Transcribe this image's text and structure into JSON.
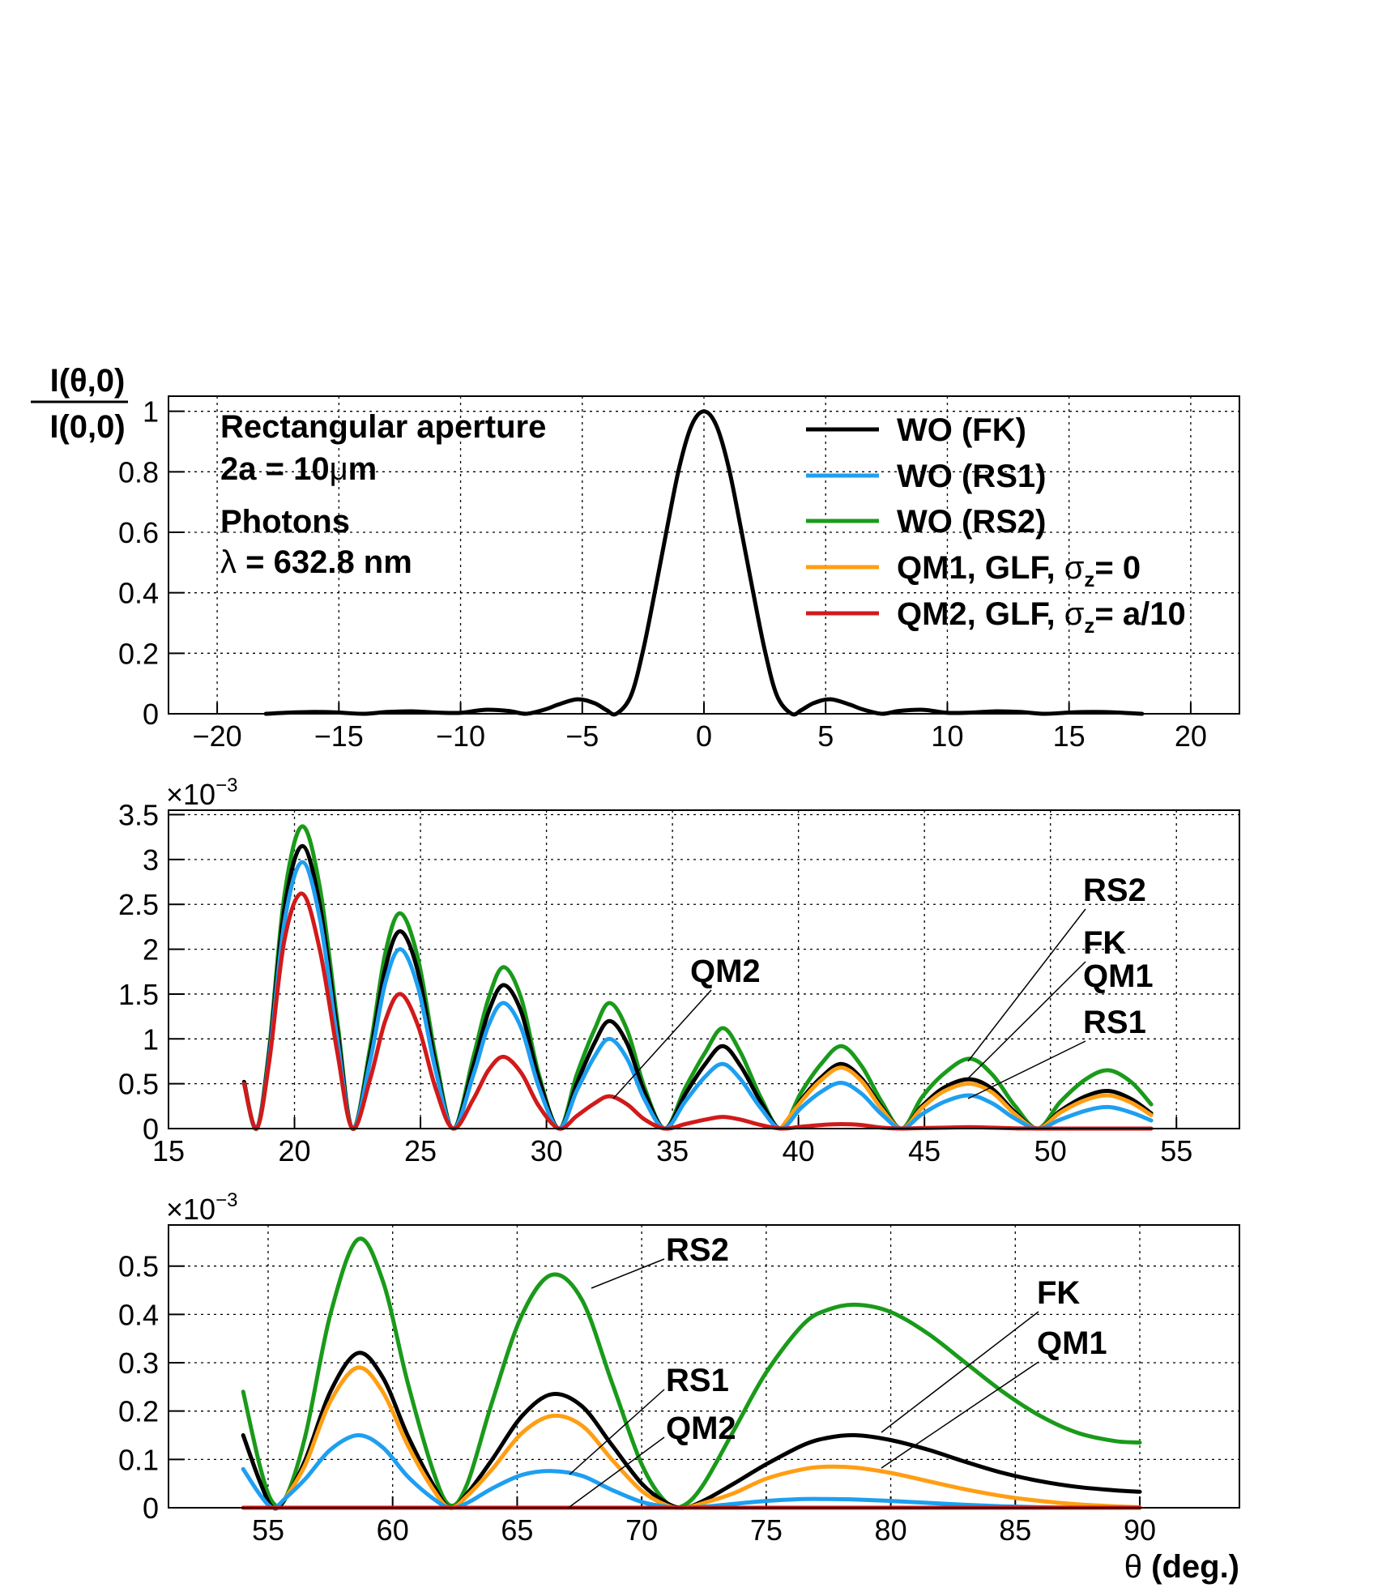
{
  "chart_data": [
    {
      "type": "line",
      "panel": "top",
      "ylabel_numerator": "I(θ,0)",
      "ylabel_denominator": "I(0,0)",
      "xlim": [
        -22,
        22
      ],
      "ylim": [
        0,
        1.05
      ],
      "xticks": [
        -20,
        -15,
        -10,
        -5,
        0,
        5,
        10,
        15,
        20
      ],
      "xtick_labels": [
        "−20",
        "−15",
        "−10",
        "−5",
        "0",
        "5",
        "10",
        "15",
        "20"
      ],
      "yticks": [
        0,
        0.2,
        0.4,
        0.6,
        0.8,
        1
      ],
      "ytick_labels": [
        "0",
        "0.2",
        "0.4",
        "0.6",
        "0.8",
        "1"
      ],
      "info_text": {
        "title": "Rectangular aperture",
        "size_prefix": "2a = 10",
        "size_unit_symbol": "μ",
        "size_unit": "m",
        "particle": "Photons",
        "wavelength_symbol": "λ",
        "wavelength": " = 632.8 nm"
      },
      "legend": {
        "position": "top-right",
        "entries": [
          {
            "label": "WO (FK)",
            "color": "#000000"
          },
          {
            "label": "WO (RS1)",
            "color": "#1e9ff0"
          },
          {
            "label": "WO (RS2)",
            "color": "#1a9a1a"
          },
          {
            "label_prefix": "QM1, GLF, ",
            "symbol": "σ",
            "subscript": "z",
            "label_suffix": "= 0",
            "color": "#ff9e14"
          },
          {
            "label_prefix": "QM2, GLF, ",
            "symbol": "σ",
            "subscript": "z",
            "label_suffix": "= a/10",
            "color": "#d11a1a"
          }
        ]
      },
      "series": [
        {
          "name": "WO (FK)",
          "color": "#000000",
          "x": [
            -18,
            -17,
            -16,
            -15,
            -14,
            -13,
            -12,
            -11,
            -10,
            -9,
            -8,
            -7.3,
            -6.5,
            -6,
            -5.2,
            -4.5,
            -4,
            -3.6,
            -3,
            -2.5,
            -2,
            -1.5,
            -1,
            -0.5,
            0,
            0.5,
            1,
            1.5,
            2,
            2.5,
            3,
            3.6,
            4,
            4.5,
            5.2,
            6,
            6.5,
            7.3,
            8,
            9,
            10,
            11,
            12,
            13,
            14,
            15,
            16,
            17,
            18
          ],
          "y": [
            0,
            0.004,
            0.006,
            0.004,
            0,
            0.006,
            0.008,
            0.004,
            0.003,
            0.013,
            0.009,
            0,
            0.015,
            0.03,
            0.048,
            0.035,
            0.012,
            0,
            0.06,
            0.21,
            0.41,
            0.62,
            0.82,
            0.955,
            1,
            0.955,
            0.82,
            0.62,
            0.41,
            0.21,
            0.06,
            0,
            0.012,
            0.035,
            0.048,
            0.03,
            0.015,
            0,
            0.009,
            0.013,
            0.003,
            0.004,
            0.008,
            0.006,
            0,
            0.004,
            0.006,
            0.004,
            0
          ]
        }
      ]
    },
    {
      "type": "line",
      "panel": "middle",
      "multiplier_base": "×10",
      "multiplier_exp": "−3",
      "xlim": [
        15,
        57.5
      ],
      "ylim": [
        0,
        3.55
      ],
      "xticks": [
        15,
        20,
        25,
        30,
        35,
        40,
        45,
        50,
        55
      ],
      "xtick_labels": [
        "15",
        "20",
        "25",
        "30",
        "35",
        "40",
        "45",
        "50",
        "55"
      ],
      "yticks": [
        0,
        0.5,
        1,
        1.5,
        2,
        2.5,
        3,
        3.5
      ],
      "ytick_labels": [
        "0",
        "0.5",
        "1",
        "1.5",
        "2",
        "2.5",
        "3",
        "3.5"
      ],
      "annotations": [
        "QM2",
        "RS2",
        "FK",
        "QM1",
        "RS1"
      ],
      "series": [
        {
          "name": "WO (RS2)",
          "color": "#1a9a1a",
          "x": [
            18,
            18.5,
            19,
            19.6,
            20.3,
            21,
            21.7,
            22.3,
            23,
            23.6,
            24.2,
            24.9,
            25.6,
            26.3,
            27.1,
            27.7,
            28.3,
            29,
            29.7,
            30.5,
            31.2,
            31.9,
            32.5,
            33.2,
            33.9,
            34.7,
            35.5,
            36.3,
            37,
            37.7,
            38.5,
            39.3,
            40.1,
            40.9,
            41.7,
            42.5,
            43.3,
            44.1,
            44.9,
            45.8,
            46.8,
            47.7,
            48.6,
            49.5,
            50.4,
            51.4,
            52.3,
            53.2,
            54
          ],
          "y": [
            0.52,
            0,
            0.9,
            2.6,
            3.37,
            2.7,
            1.2,
            0,
            0.9,
            1.95,
            2.4,
            1.9,
            0.8,
            0,
            0.8,
            1.45,
            1.8,
            1.45,
            0.6,
            0,
            0.6,
            1.1,
            1.4,
            1.1,
            0.45,
            0,
            0.45,
            0.85,
            1.12,
            0.85,
            0.35,
            0,
            0.4,
            0.72,
            0.92,
            0.7,
            0.3,
            0,
            0.35,
            0.62,
            0.78,
            0.6,
            0.25,
            0,
            0.3,
            0.55,
            0.65,
            0.52,
            0.27
          ]
        },
        {
          "name": "WO (FK)",
          "color": "#000000",
          "x": [
            18,
            18.5,
            19,
            19.6,
            20.3,
            21,
            21.7,
            22.3,
            23,
            23.6,
            24.2,
            24.9,
            25.6,
            26.3,
            27.1,
            27.7,
            28.3,
            29,
            29.7,
            30.5,
            31.2,
            31.9,
            32.5,
            33.2,
            33.9,
            34.7,
            35.5,
            36.3,
            37,
            37.7,
            38.5,
            39.3,
            40.1,
            40.9,
            41.7,
            42.5,
            43.3,
            44.1,
            44.9,
            45.8,
            46.8,
            47.7,
            48.6,
            49.5,
            50.4,
            51.4,
            52.3,
            53.2,
            54
          ],
          "y": [
            0.52,
            0,
            0.85,
            2.45,
            3.15,
            2.5,
            1.1,
            0,
            0.82,
            1.78,
            2.2,
            1.75,
            0.72,
            0,
            0.7,
            1.3,
            1.6,
            1.3,
            0.55,
            0,
            0.5,
            0.95,
            1.2,
            0.95,
            0.4,
            0,
            0.38,
            0.72,
            0.92,
            0.7,
            0.3,
            0,
            0.32,
            0.57,
            0.72,
            0.56,
            0.24,
            0,
            0.25,
            0.46,
            0.55,
            0.44,
            0.18,
            0,
            0.2,
            0.36,
            0.42,
            0.33,
            0.17
          ]
        },
        {
          "name": "QM1, GLF, σz = 0",
          "color": "#ff9e14",
          "x": [
            39.3,
            40.1,
            40.9,
            41.7,
            42.5,
            43.3,
            44.1,
            44.9,
            45.8,
            46.8,
            47.7,
            48.6,
            49.5,
            50.4,
            51.4,
            52.3,
            53.2,
            54
          ],
          "y": [
            0,
            0.3,
            0.54,
            0.68,
            0.53,
            0.22,
            0,
            0.23,
            0.42,
            0.5,
            0.4,
            0.16,
            0,
            0.18,
            0.32,
            0.37,
            0.29,
            0.15
          ]
        },
        {
          "name": "WO (RS1)",
          "color": "#1e9ff0",
          "x": [
            18,
            18.5,
            19,
            19.6,
            20.3,
            21,
            21.7,
            22.3,
            23,
            23.6,
            24.2,
            24.9,
            25.6,
            26.3,
            27.1,
            27.7,
            28.3,
            29,
            29.7,
            30.5,
            31.2,
            31.9,
            32.5,
            33.2,
            33.9,
            34.7,
            35.5,
            36.3,
            37,
            37.7,
            38.5,
            39.3,
            40.1,
            40.9,
            41.7,
            42.5,
            43.3,
            44.1,
            44.9,
            45.8,
            46.8,
            47.7,
            48.6,
            49.5,
            50.4,
            51.4,
            52.3,
            53.2,
            54
          ],
          "y": [
            0.5,
            0,
            0.8,
            2.3,
            2.97,
            2.35,
            1.0,
            0,
            0.75,
            1.62,
            2.0,
            1.58,
            0.65,
            0,
            0.6,
            1.15,
            1.4,
            1.12,
            0.46,
            0,
            0.42,
            0.8,
            1.0,
            0.78,
            0.32,
            0,
            0.3,
            0.58,
            0.72,
            0.55,
            0.23,
            0,
            0.23,
            0.41,
            0.51,
            0.39,
            0.16,
            0,
            0.16,
            0.3,
            0.37,
            0.28,
            0.11,
            0,
            0.1,
            0.2,
            0.24,
            0.18,
            0.09
          ]
        },
        {
          "name": "QM2, GLF, σz = a/10",
          "color": "#d11a1a",
          "x": [
            18,
            18.5,
            19,
            19.6,
            20.3,
            21,
            21.7,
            22.3,
            23,
            23.6,
            24.2,
            24.9,
            25.6,
            26.3,
            27.1,
            27.7,
            28.3,
            29,
            29.7,
            30.5,
            31.2,
            31.9,
            32.5,
            33.2,
            33.9,
            34.7,
            35.5,
            36.3,
            37,
            37.7,
            38.5,
            39.3,
            40.1,
            40.9,
            41.7,
            42.5,
            43.3,
            44.1,
            44.9,
            45.8,
            46.8,
            47.7,
            48.6,
            49.5,
            50.4,
            51.4,
            52.3,
            53.2,
            54
          ],
          "y": [
            0.5,
            0,
            0.75,
            2.1,
            2.62,
            2.0,
            0.85,
            0,
            0.55,
            1.2,
            1.5,
            1.15,
            0.45,
            0,
            0.33,
            0.65,
            0.8,
            0.62,
            0.25,
            0,
            0.14,
            0.28,
            0.36,
            0.27,
            0.1,
            0,
            0.05,
            0.1,
            0.13,
            0.1,
            0.04,
            0,
            0.02,
            0.04,
            0.05,
            0.04,
            0.01,
            0,
            0.005,
            0.01,
            0.015,
            0.01,
            0.003,
            0,
            0,
            0,
            0,
            0,
            0
          ]
        }
      ]
    },
    {
      "type": "line",
      "panel": "bottom",
      "multiplier_base": "×10",
      "multiplier_exp": "−3",
      "xlim": [
        51,
        94
      ],
      "ylim": [
        0,
        0.585
      ],
      "xticks": [
        55,
        60,
        65,
        70,
        75,
        80,
        85,
        90
      ],
      "xtick_labels": [
        "55",
        "60",
        "65",
        "70",
        "75",
        "80",
        "85",
        "90"
      ],
      "yticks": [
        0,
        0.1,
        0.2,
        0.3,
        0.4,
        0.5
      ],
      "ytick_labels": [
        "0",
        "0.1",
        "0.2",
        "0.3",
        "0.4",
        "0.5"
      ],
      "xlabel_symbol": "θ",
      "xlabel": " (deg.)",
      "annotations": [
        "RS2",
        "FK",
        "QM1",
        "RS1",
        "QM2"
      ],
      "series": [
        {
          "name": "WO (RS2)",
          "color": "#1a9a1a",
          "x": [
            54,
            54.7,
            55.2,
            55.7,
            56.5,
            57.5,
            58.6,
            59.6,
            60.6,
            61.6,
            62.3,
            63,
            64,
            65.2,
            66.4,
            67.6,
            68.8,
            70,
            71,
            71.7,
            72.5,
            73.7,
            75,
            76.5,
            77.5,
            78.6,
            80,
            81.5,
            83,
            84.5,
            86,
            87.5,
            89,
            90
          ],
          "y": [
            0.24,
            0.08,
            0.01,
            0.02,
            0.15,
            0.4,
            0.555,
            0.47,
            0.26,
            0.08,
            0.005,
            0.05,
            0.22,
            0.4,
            0.482,
            0.43,
            0.26,
            0.09,
            0.01,
            0.005,
            0.05,
            0.16,
            0.28,
            0.38,
            0.41,
            0.42,
            0.405,
            0.36,
            0.3,
            0.24,
            0.19,
            0.155,
            0.138,
            0.135
          ]
        },
        {
          "name": "WO (FK)",
          "color": "#000000",
          "x": [
            54,
            54.7,
            55.2,
            55.7,
            56.5,
            57.5,
            58.6,
            59.6,
            60.6,
            61.6,
            62.3,
            63,
            64,
            65.2,
            66.4,
            67.6,
            68.8,
            70,
            71,
            71.7,
            72.5,
            73.7,
            75,
            76.5,
            77.5,
            78.6,
            80,
            81.5,
            83,
            84.5,
            86,
            87.5,
            89,
            90
          ],
          "y": [
            0.15,
            0.05,
            0,
            0.02,
            0.1,
            0.24,
            0.32,
            0.27,
            0.15,
            0.05,
            0,
            0.03,
            0.1,
            0.19,
            0.235,
            0.21,
            0.13,
            0.05,
            0.01,
            0,
            0.015,
            0.05,
            0.09,
            0.13,
            0.145,
            0.15,
            0.14,
            0.12,
            0.095,
            0.072,
            0.055,
            0.043,
            0.036,
            0.033
          ]
        },
        {
          "name": "QM1, GLF, σz = 0",
          "color": "#ff9e14",
          "x": [
            55.7,
            56.5,
            57.5,
            58.6,
            59.6,
            60.6,
            61.6,
            62.3,
            63,
            64,
            65.2,
            66.4,
            67.6,
            68.8,
            70,
            71,
            71.7,
            72.5,
            73.7,
            75,
            76.5,
            77.5,
            78.6,
            80,
            81.5,
            83,
            84.5,
            86,
            87.5,
            89,
            90
          ],
          "y": [
            0.02,
            0.09,
            0.22,
            0.29,
            0.24,
            0.13,
            0.04,
            0,
            0.025,
            0.08,
            0.155,
            0.19,
            0.17,
            0.1,
            0.035,
            0.005,
            0,
            0.01,
            0.03,
            0.06,
            0.08,
            0.085,
            0.083,
            0.072,
            0.055,
            0.038,
            0.024,
            0.014,
            0.007,
            0.003,
            0.001
          ]
        },
        {
          "name": "WO (RS1)",
          "color": "#1e9ff0",
          "x": [
            54,
            54.7,
            55.2,
            55.7,
            56.5,
            57.5,
            58.6,
            59.6,
            60.6,
            61.6,
            62.3,
            63,
            64,
            65.2,
            66.4,
            67.6,
            68.8,
            70,
            71,
            71.7,
            72.5,
            73.7,
            75,
            76.5,
            77.5,
            78.6,
            80,
            81.5,
            83,
            84.5,
            86,
            87.5,
            89,
            90
          ],
          "y": [
            0.08,
            0.025,
            0,
            0.02,
            0.06,
            0.12,
            0.15,
            0.125,
            0.065,
            0.02,
            0,
            0.01,
            0.04,
            0.068,
            0.076,
            0.066,
            0.037,
            0.012,
            0.002,
            0,
            0.002,
            0.008,
            0.014,
            0.018,
            0.018,
            0.017,
            0.014,
            0.01,
            0.006,
            0.003,
            0.001,
            0,
            0,
            0
          ]
        },
        {
          "name": "QM2, GLF, σz = a/10",
          "color": "#d11a1a",
          "x": [
            54,
            90
          ],
          "y": [
            0,
            0
          ]
        }
      ]
    }
  ]
}
